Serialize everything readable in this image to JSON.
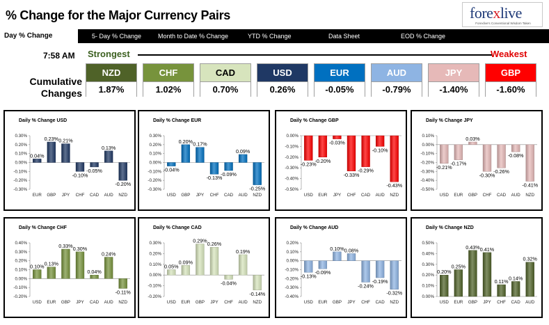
{
  "header": {
    "title": "% Change for the Major Currency Pairs",
    "logo": {
      "name": "forexlive",
      "tagline": "Forexlive's Conventional Wisdom Taken"
    }
  },
  "nav": {
    "tabs": [
      {
        "label": "Day % Change",
        "active": true
      },
      {
        "label": "5- Day % Change",
        "active": false
      },
      {
        "label": "Month to Date % Change",
        "active": false
      },
      {
        "label": "YTD % Change",
        "active": false
      },
      {
        "label": "Data Sheet",
        "active": false
      },
      {
        "label": "EOD % Change",
        "active": false
      }
    ]
  },
  "summary": {
    "time": "7:58 AM",
    "strongest_label": "Strongest",
    "weakest_label": "Weakest",
    "cumulative_label_line1": "Cumulative",
    "cumulative_label_line2": "Changes",
    "currencies": [
      {
        "name": "NZD",
        "value": "1.87%",
        "bg": "#4f6228",
        "fg": "#ffffff"
      },
      {
        "name": "CHF",
        "value": "1.02%",
        "bg": "#77933c",
        "fg": "#ffffff"
      },
      {
        "name": "CAD",
        "value": "0.70%",
        "bg": "#d7e4bd",
        "fg": "#000000"
      },
      {
        "name": "USD",
        "value": "0.26%",
        "bg": "#1f3864",
        "fg": "#ffffff"
      },
      {
        "name": "EUR",
        "value": "-0.05%",
        "bg": "#0070c0",
        "fg": "#ffffff"
      },
      {
        "name": "AUD",
        "value": "-0.79%",
        "bg": "#8eb4e3",
        "fg": "#ffffff"
      },
      {
        "name": "JPY",
        "value": "-1.40%",
        "bg": "#e6b9b8",
        "fg": "#ffffff"
      },
      {
        "name": "GBP",
        "value": "-1.60%",
        "bg": "#ff0000",
        "fg": "#ffffff"
      }
    ]
  },
  "chart_data": [
    {
      "type": "bar",
      "title": "Daily % Change USD",
      "categories": [
        "EUR",
        "GBP",
        "JPY",
        "CHF",
        "CAD",
        "AUD",
        "NZD"
      ],
      "values": [
        0.04,
        0.23,
        0.21,
        -0.1,
        -0.05,
        0.13,
        -0.2
      ],
      "labels": [
        "0.04%",
        "0.23%",
        "0.21%",
        "-0.10%",
        "-0.05%",
        "0.13%",
        "-0.20%"
      ],
      "ylim": [
        -0.3,
        0.3
      ],
      "yticks": [
        0.3,
        0.2,
        0.1,
        0,
        -0.1,
        -0.2,
        -0.3
      ],
      "tick_decimals": 2,
      "color": "#1f3864"
    },
    {
      "type": "bar",
      "title": "Daily % Change EUR",
      "categories": [
        "USD",
        "GBP",
        "JPY",
        "CHF",
        "CAD",
        "AUD",
        "NZD"
      ],
      "values": [
        -0.04,
        0.2,
        0.17,
        -0.13,
        -0.09,
        0.09,
        -0.25
      ],
      "labels": [
        "-0.04%",
        "0.20%",
        "0.17%",
        "-0.13%",
        "-0.09%",
        "0.09%",
        "-0.25%"
      ],
      "ylim": [
        -0.3,
        0.3
      ],
      "yticks": [
        0.3,
        0.2,
        0.1,
        0,
        -0.1,
        -0.2,
        -0.3
      ],
      "tick_decimals": 2,
      "color": "#0070c0"
    },
    {
      "type": "bar",
      "title": "Daily % Change GBP",
      "categories": [
        "USD",
        "EUR",
        "JPY",
        "CHF",
        "CAD",
        "AUD",
        "NZD"
      ],
      "values": [
        -0.23,
        -0.2,
        -0.03,
        -0.33,
        -0.29,
        -0.1,
        -0.43
      ],
      "labels": [
        "-0.23%",
        "-0.20%",
        "-0.03%",
        "-0.33%",
        "-0.29%",
        "-0.10%",
        "-0.43%"
      ],
      "ylim": [
        -0.5,
        0
      ],
      "yticks": [
        0,
        -0.1,
        -0.2,
        -0.3,
        -0.4,
        -0.5
      ],
      "tick_decimals": 2,
      "color": "#ff0000"
    },
    {
      "type": "bar",
      "title": "Daily % Change JPY",
      "categories": [
        "USD",
        "EUR",
        "GBP",
        "CHF",
        "CAD",
        "AUD",
        "NZD"
      ],
      "values": [
        -0.21,
        -0.17,
        0.03,
        -0.3,
        -0.26,
        -0.08,
        -0.41
      ],
      "labels": [
        "-0.21%",
        "-0.17%",
        "0.03%",
        "-0.30%",
        "-0.26%",
        "-0.08%",
        "-0.41%"
      ],
      "ylim": [
        -0.5,
        0.1
      ],
      "yticks": [
        0.1,
        0,
        -0.1,
        -0.2,
        -0.3,
        -0.4,
        -0.5
      ],
      "tick_decimals": 2,
      "color": "#e6b9b8"
    },
    {
      "type": "bar",
      "title": "Daily % Change CHF",
      "categories": [
        "USD",
        "EUR",
        "GBP",
        "JPY",
        "CAD",
        "AUD",
        "NZD"
      ],
      "values": [
        0.1,
        0.13,
        0.33,
        0.3,
        0.04,
        0.24,
        -0.11
      ],
      "labels": [
        "0.10%",
        "0.13%",
        "0.33%",
        "0.30%",
        "0.04%",
        "0.24%",
        "-0.11%"
      ],
      "ylim": [
        -0.2,
        0.4
      ],
      "yticks": [
        0.4,
        0.3,
        0.2,
        0.1,
        0,
        -0.1,
        -0.2
      ],
      "tick_decimals": 2,
      "color": "#77933c"
    },
    {
      "type": "bar",
      "title": "Daily % Change CAD",
      "categories": [
        "USD",
        "EUR",
        "GBP",
        "JPY",
        "CHF",
        "AUD",
        "NZD"
      ],
      "values": [
        0.05,
        0.09,
        0.29,
        0.26,
        -0.04,
        0.19,
        -0.14
      ],
      "labels": [
        "0.05%",
        "0.09%",
        "0.29%",
        "0.26%",
        "-0.04%",
        "0.19%",
        "-0.14%"
      ],
      "ylim": [
        -0.2,
        0.3
      ],
      "yticks": [
        0.3,
        0.2,
        0.1,
        0,
        -0.1,
        -0.2
      ],
      "tick_decimals": 2,
      "color": "#d7e4bd"
    },
    {
      "type": "bar",
      "title": "Daily % Change AUD",
      "categories": [
        "USD",
        "EUR",
        "GBP",
        "JPY",
        "CHF",
        "CAD",
        "NZD"
      ],
      "values": [
        -0.13,
        -0.09,
        0.1,
        0.08,
        -0.24,
        -0.19,
        -0.32
      ],
      "labels": [
        "-0.13%",
        "-0.09%",
        "0.10%",
        "0.08%",
        "-0.24%",
        "-0.19%",
        "-0.32%"
      ],
      "ylim": [
        -0.4,
        0.2
      ],
      "yticks": [
        0.2,
        0.1,
        0,
        -0.1,
        -0.2,
        -0.3,
        -0.4
      ],
      "tick_decimals": 2,
      "color": "#8eb4e3"
    },
    {
      "type": "bar",
      "title": "Daily % Change NZD",
      "categories": [
        "USD",
        "EUR",
        "GBP",
        "JPY",
        "CHF",
        "CAD",
        "AUD"
      ],
      "values": [
        0.2,
        0.25,
        0.43,
        0.41,
        0.11,
        0.14,
        0.32
      ],
      "labels": [
        "0.20%",
        "0.25%",
        "0.43%",
        "0.41%",
        "0.11%",
        "0.14%",
        "0.32%"
      ],
      "ylim": [
        0,
        0.5
      ],
      "yticks": [
        0.5,
        0.4,
        0.3,
        0.2,
        0.1,
        0
      ],
      "tick_decimals": 2,
      "color": "#4f6228"
    }
  ]
}
